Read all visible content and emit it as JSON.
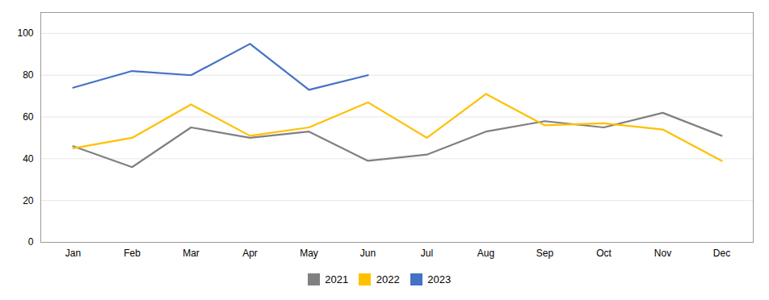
{
  "chart_data": {
    "type": "line",
    "categories": [
      "Jan",
      "Feb",
      "Mar",
      "Apr",
      "May",
      "Jun",
      "Jul",
      "Aug",
      "Sep",
      "Oct",
      "Nov",
      "Dec"
    ],
    "series": [
      {
        "name": "2021",
        "color": "#808080",
        "values": [
          46,
          36,
          55,
          50,
          53,
          39,
          42,
          53,
          58,
          55,
          62,
          51
        ]
      },
      {
        "name": "2022",
        "color": "#FFC000",
        "values": [
          45,
          50,
          66,
          51,
          55,
          67,
          50,
          71,
          56,
          57,
          54,
          39
        ]
      },
      {
        "name": "2023",
        "color": "#4472C4",
        "values": [
          74,
          82,
          80,
          95,
          73,
          80,
          null,
          null,
          null,
          null,
          null,
          null
        ]
      }
    ],
    "ylim": [
      0,
      110
    ],
    "yticks": [
      0,
      20,
      40,
      60,
      80,
      100
    ],
    "grid": true,
    "legend": "bottom"
  }
}
